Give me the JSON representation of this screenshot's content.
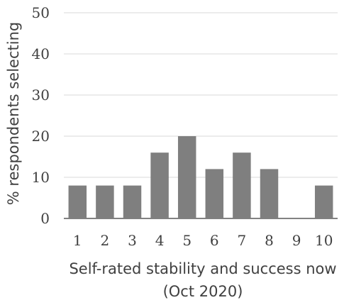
{
  "chart_data": {
    "type": "bar",
    "title": "",
    "xlabel_lines": [
      "Self-rated stability and success now",
      "(Oct 2020)"
    ],
    "ylabel": "% respondents selecting",
    "categories": [
      "1",
      "2",
      "3",
      "4",
      "5",
      "6",
      "7",
      "8",
      "9",
      "10"
    ],
    "values": [
      8,
      8,
      8,
      16,
      20,
      12,
      16,
      12,
      0,
      8
    ],
    "ylim": [
      0,
      50
    ],
    "yticks": [
      "0",
      "10",
      "20",
      "30",
      "40",
      "50"
    ],
    "grid": true,
    "legend": "none",
    "colors": {
      "bar": "#7f7f7f",
      "grid": "#d9d9d9",
      "axis": "#595959",
      "text": "#404040"
    }
  }
}
